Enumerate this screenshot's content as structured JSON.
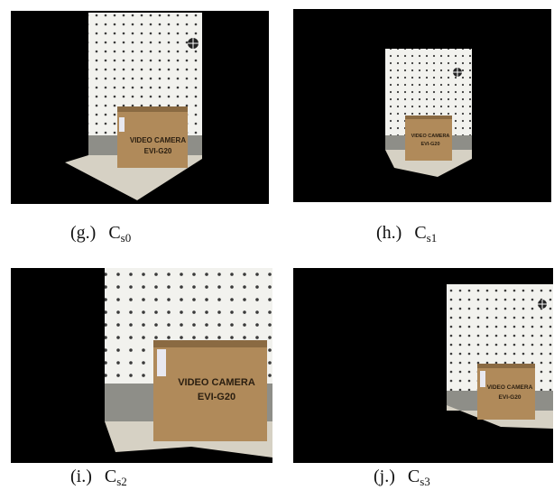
{
  "panels": [
    {
      "id": "g",
      "label": "(g.)",
      "camera": "C",
      "subscript": "s0",
      "box_text_line1": "VIDEO CAMERA",
      "box_text_line2": "EVI-G20"
    },
    {
      "id": "h",
      "label": "(h.)",
      "camera": "C",
      "subscript": "s1",
      "box_text_line1": "VIDEO CAMERA",
      "box_text_line2": "EVI-G20"
    },
    {
      "id": "i",
      "label": "(i.)",
      "camera": "C",
      "subscript": "s2",
      "box_text_line1": "VIDEO CAMERA",
      "box_text_line2": "EVI-G20"
    },
    {
      "id": "j",
      "label": "(j.)",
      "camera": "C",
      "subscript": "s3",
      "box_text_line1": "VIDEO CAMERA",
      "box_text_line2": "EVI-G20"
    }
  ],
  "colors": {
    "background": "#000000",
    "wall": "#f2f2ee",
    "wall_dots": "#3a3a3a",
    "baseboard": "#8e8e88",
    "floor": "#d6d1c4",
    "box": "#b08a5a",
    "box_dark": "#8a6a42",
    "box_text": "#2a1e10"
  }
}
